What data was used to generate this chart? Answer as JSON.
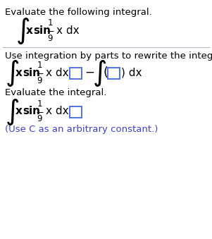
{
  "bg_color": "#ffffff",
  "text_color": "#000000",
  "blue_color": "#4040cc",
  "box_color": "#4169e1",
  "separator_color": "#b0b8c8",
  "line1": "Evaluate the following integral.",
  "line5": "Use integration by parts to rewrite the integral.",
  "line9": "Evaluate the integral.",
  "line13": "(Use C as an arbitrary constant.)",
  "figsize": [
    3.01,
    3.39
  ],
  "dpi": 100
}
